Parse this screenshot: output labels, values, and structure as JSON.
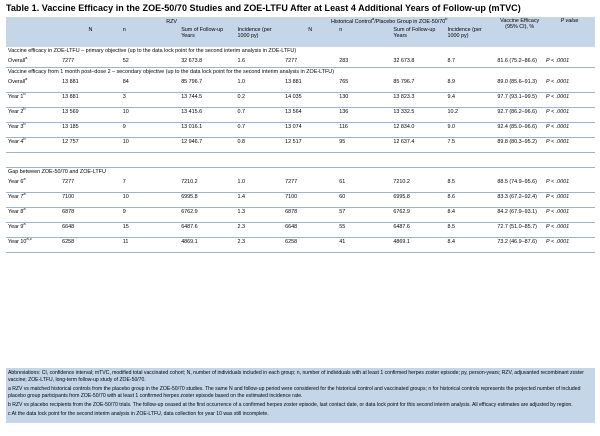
{
  "title": "Table 1. Vaccine Efficacy in the ZOE-50/70 Studies and ZOE-LTFU After at Least 4 Additional Years of Follow-up (mTVC)",
  "header": {
    "group_rzv": "RZV",
    "group_placebo": "Historical Control",
    "group_placebo_sup": "a",
    "group_placebo_tail": "/Placebo Group in ZOE-50/70",
    "group_placebo_sup2": "b",
    "ve": "Vaccine Efficacy",
    "ve_ci": "(95% CI), %",
    "pvalue": "P value",
    "cols": [
      "N",
      "n",
      "Sum of Follow-up Years",
      "Incidence (per 1000 py)",
      "N",
      "n",
      "Sum of Follow-up Years",
      "Incidence (per 1000 py)"
    ]
  },
  "sections": [
    {
      "label": "Vaccine efficacy in ZOE-LTFU – primary objective (up to the data lock point for the second interim analysis in ZOE-LTFU)",
      "rows": [
        {
          "label": "Overall",
          "sup": "a",
          "cells": [
            "7277",
            "52",
            "32 673.8",
            "1.6",
            "7277",
            "283",
            "32 673.8",
            "8.7",
            "81.6 (75.2–86.6)",
            "P < .0001"
          ]
        }
      ]
    },
    {
      "label": "Vaccine efficacy from 1 month post–dose 2 – secondary objective (up to the data lock point for the second interim analysis in ZOE-LTFU)",
      "rows": [
        {
          "label": "Overall",
          "sup": "a",
          "cells": [
            "13 881",
            "84",
            "85 796.7",
            "1.0",
            "13 881",
            "765",
            "85 796.7",
            "8.9",
            "89.0 (85.6–91.3)",
            "P < .0001"
          ]
        },
        {
          "label": "Year 1",
          "sup": "b",
          "cells": [
            "13 881",
            "3",
            "13 744.5",
            "0.2",
            "14 035",
            "130",
            "13 823.3",
            "9.4",
            "97.7 (93.1–99.5)",
            "P < .0001"
          ]
        },
        {
          "label": "Year 2",
          "sup": "b",
          "cells": [
            "13 569",
            "10",
            "13 415.6",
            "0.7",
            "13 564",
            "136",
            "13 332.5",
            "10.2",
            "92.7 (86.2–96.6)",
            "P < .0001"
          ]
        },
        {
          "label": "Year 3",
          "sup": "b",
          "cells": [
            "13 185",
            "9",
            "13 016.1",
            "0.7",
            "13 074",
            "116",
            "12 834.0",
            "9.0",
            "92.4 (85.0–96.6)",
            "P < .0001"
          ]
        },
        {
          "label": "Year 4",
          "sup": "b",
          "cells": [
            "12 757",
            "10",
            "12 946.7",
            "0.8",
            "12 517",
            "95",
            "12 637.4",
            "7.5",
            "89.8 (80.3–95.2)",
            "P < .0001"
          ]
        }
      ]
    },
    {
      "label": "Gap between ZOE-50/70 and ZOE-LTFU",
      "rows": [
        {
          "label": "Year 6",
          "sup": "a",
          "cells": [
            "7277",
            "7",
            "7210.2",
            "1.0",
            "7277",
            "61",
            "7210.2",
            "8.5",
            "88.5 (74.9–95.6)",
            "P < .0001"
          ]
        },
        {
          "label": "Year 7",
          "sup": "a",
          "cells": [
            "7100",
            "10",
            "6995.8",
            "1.4",
            "7100",
            "60",
            "6995.8",
            "8.6",
            "83.3 (67.2–92.4)",
            "P < .0001"
          ]
        },
        {
          "label": "Year 8",
          "sup": "a",
          "cells": [
            "6878",
            "9",
            "6762.9",
            "1.3",
            "6878",
            "57",
            "6762.9",
            "8.4",
            "84.2 (67.9–93.1)",
            "P < .0001"
          ]
        },
        {
          "label": "Year 9",
          "sup": "a",
          "cells": [
            "6648",
            "15",
            "6487.6",
            "2.3",
            "6648",
            "55",
            "6487.6",
            "8.5",
            "72.7 (51.0–85.7)",
            "P < .0001"
          ]
        },
        {
          "label": "Year 10",
          "sup": "a,c",
          "cells": [
            "6258",
            "11",
            "4869.1",
            "2.3",
            "6258",
            "41",
            "4869.1",
            "8.4",
            "73.2 (46.9–87.6)",
            "P < .0001"
          ]
        }
      ]
    }
  ],
  "notes": {
    "abbrev": "Abbreviations: CI, confidence interval; mTVC, modified total vaccinated cohort; N, number of individuals included in each group; n, number of individuals with at least 1 confirmed herpes zoster episode; py, person-years; RZV, adjuvanted recombinant zoster vaccine; ZOE-LTFU, long-term follow-up study of ZOE-50/70.",
    "a": "a RZV vs matched historical controls from the placebo group in the ZOE-50/70 studies. The same N and follow-up period were considered for the historical control and vaccinated groups; n for historical controls represents the projected number of included placebo group participants from ZOE-50/70 with at least 1 confirmed herpes zoster episode based on the estimated incidence rate.",
    "b": "b RZV vs placebo recipients from the ZOE-50/70 trials. The follow-up ceased at the first occurrence of a confirmed herpes zoster episode, last contact date, or data lock point for this second interim analysis. All efficacy estimates are adjusted by region.",
    "c": "c At the data lock point for the second interim analysis in ZOE-LTFU, data collection for year 10 was still incomplete."
  }
}
